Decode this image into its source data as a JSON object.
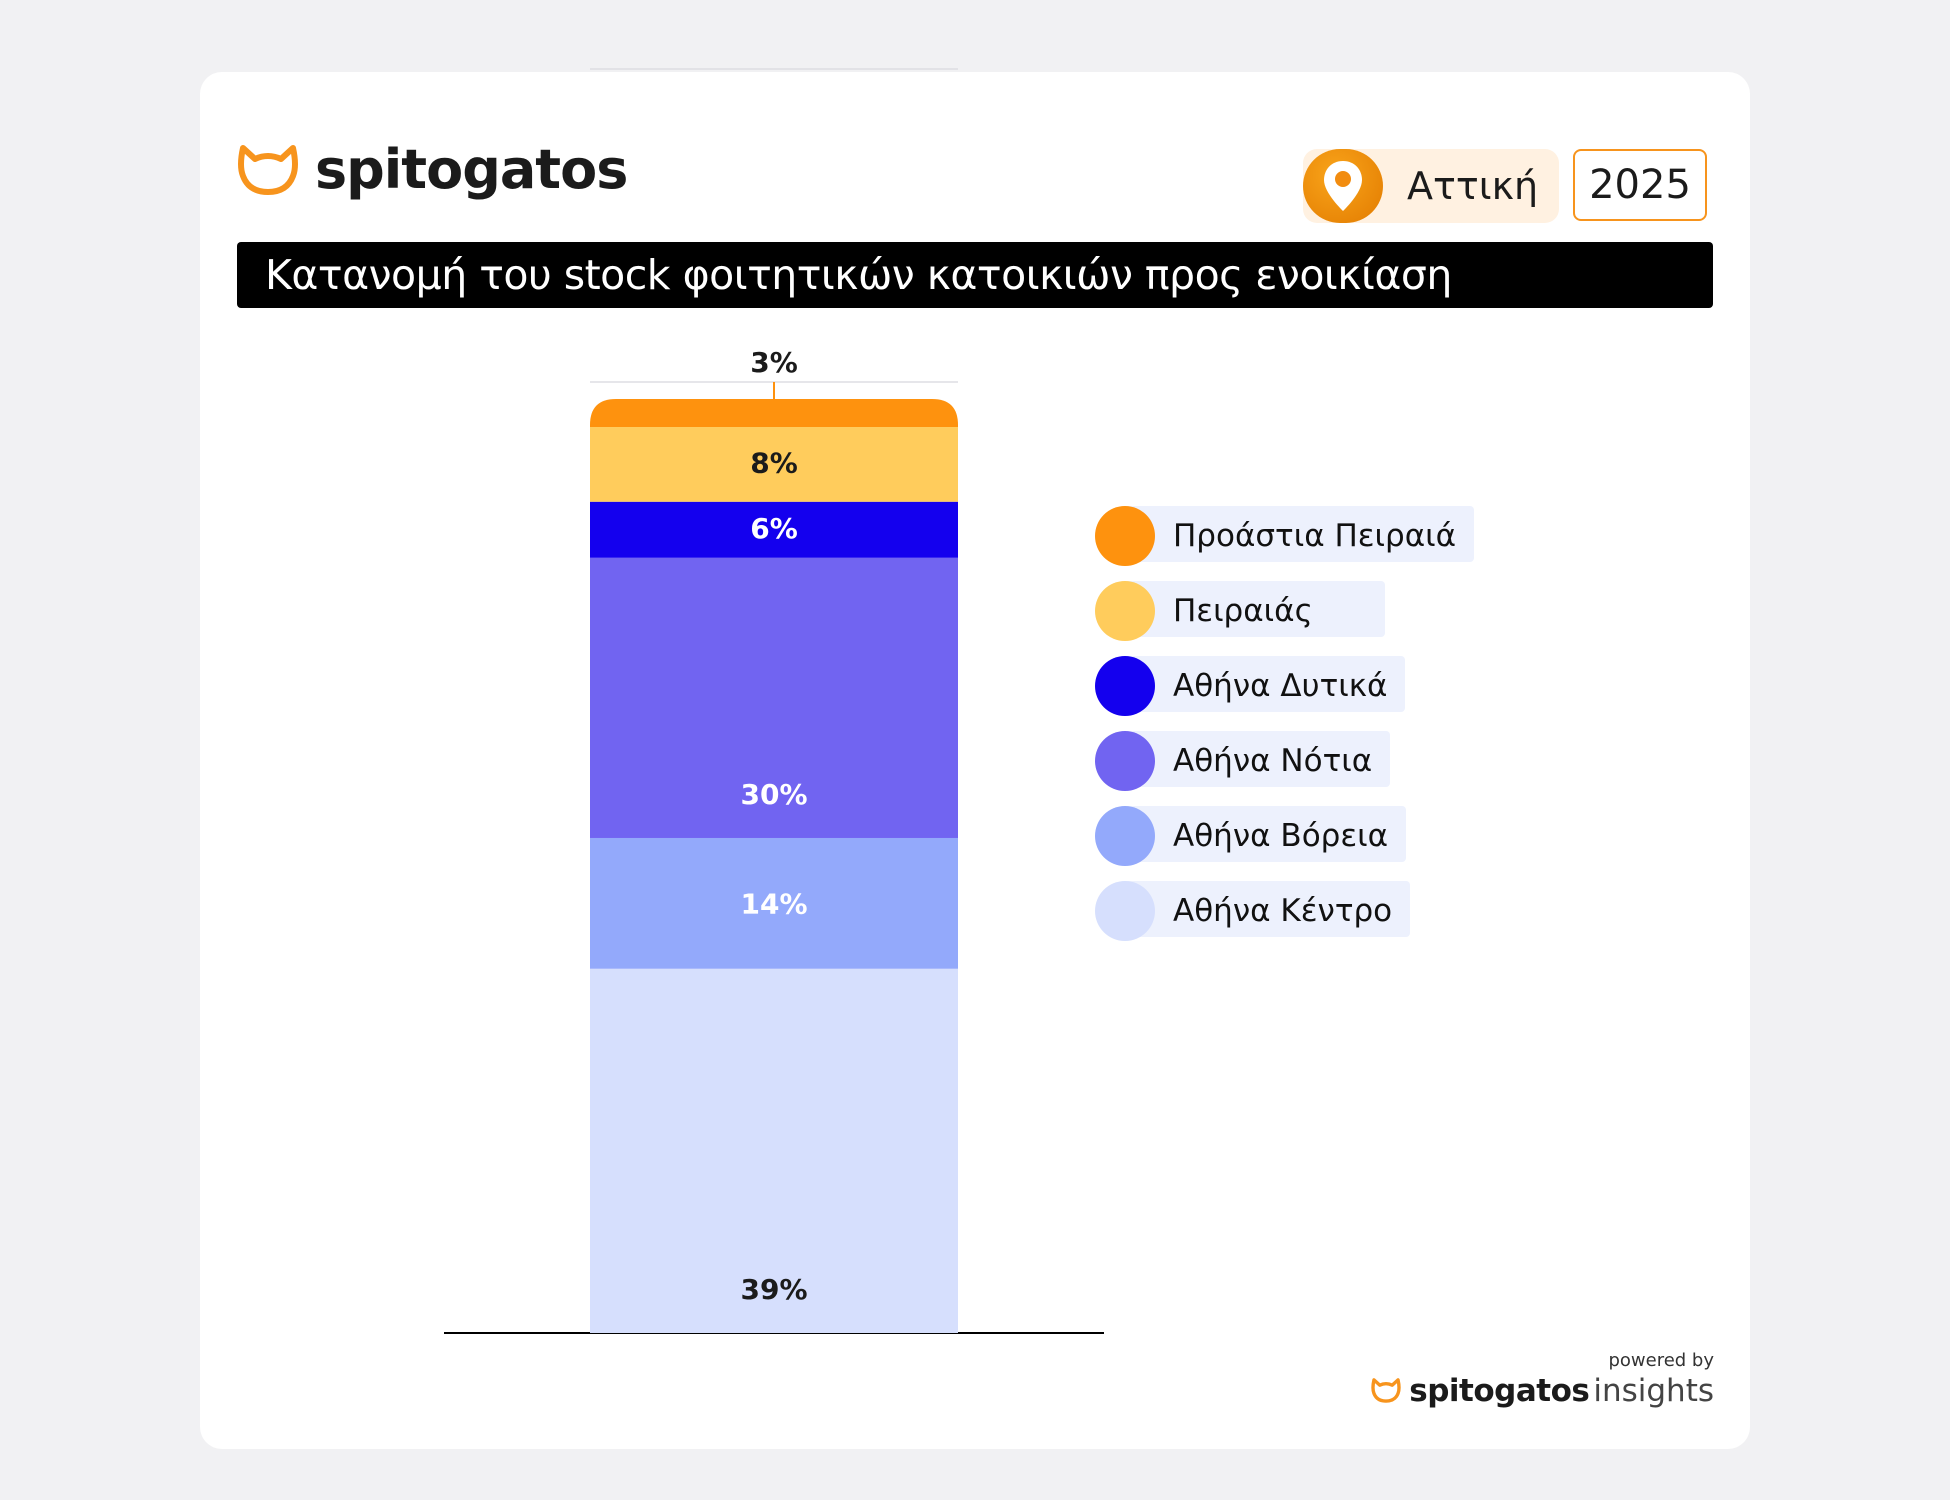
{
  "brand": {
    "name": "spitogatos",
    "logo_icon": "cat-head-icon"
  },
  "filters": {
    "location": "Αττική",
    "year": "2025"
  },
  "title": "Κατανομή του stock φοιτητικών κατοικιών προς ενοικίαση",
  "chart_data": {
    "type": "bar",
    "stacked": true,
    "title": "Κατανομή του stock φοιτητικών κατοικιών προς ενοικίαση",
    "categories": [
      ""
    ],
    "ylim": [
      0,
      100
    ],
    "series": [
      {
        "name": "Αθήνα Κέντρο",
        "values": [
          39
        ],
        "label": "39%",
        "color": "#d6dffd",
        "label_color": "#1b1b1b"
      },
      {
        "name": "Αθήνα Βόρεια",
        "values": [
          14
        ],
        "label": "14%",
        "color": "#93a9fb",
        "label_color": "#ffffff"
      },
      {
        "name": "Αθήνα Νότια",
        "values": [
          30
        ],
        "label": "30%",
        "color": "#7164f1",
        "label_color": "#ffffff"
      },
      {
        "name": "Αθήνα Δυτικά",
        "values": [
          6
        ],
        "label": "6%",
        "color": "#1400ee",
        "label_color": "#ffffff"
      },
      {
        "name": "Πειραιάς",
        "values": [
          8
        ],
        "label": "8%",
        "color": "#ffcc5c",
        "label_color": "#1b1b1b"
      },
      {
        "name": "Προάστια Πειραιά",
        "values": [
          3
        ],
        "label": "3%",
        "color": "#fe920e",
        "label_color": "#1b1b1b"
      }
    ],
    "legend_position": "right",
    "grid": false
  },
  "legend": [
    {
      "label": "Προάστια Πειραιά",
      "color": "#fe920e"
    },
    {
      "label": "Πειραιάς",
      "color": "#ffcc5c"
    },
    {
      "label": "Αθήνα Δυτικά",
      "color": "#1400ee"
    },
    {
      "label": "Αθήνα Νότια",
      "color": "#7164f1"
    },
    {
      "label": "Αθήνα Βόρεια",
      "color": "#93a9fb"
    },
    {
      "label": "Αθήνα Κέντρο",
      "color": "#d6dffd"
    }
  ],
  "footer": {
    "powered_by": "powered by",
    "brand_bold": "spitogatos",
    "brand_light": "insights"
  },
  "colors": {
    "accent": "#f7941d"
  }
}
